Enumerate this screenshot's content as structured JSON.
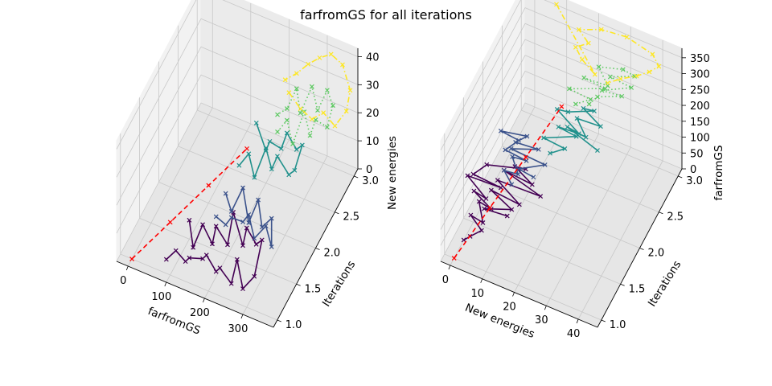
{
  "figure": {
    "title": "farfromGS for all iterations"
  },
  "chart_data": [
    {
      "type": "line",
      "title": "",
      "xlabel": "farfromGS",
      "ylabel": "Iterations",
      "zlabel": "New energies",
      "x_ticks": [
        "0",
        "100",
        "200",
        "300"
      ],
      "y_ticks": [
        "1.0",
        "1.5",
        "2.0",
        "2.5",
        "3.0"
      ],
      "z_ticks": [
        "0",
        "10",
        "20",
        "30",
        "40"
      ],
      "xlim": [
        -30,
        380
      ],
      "ylim": [
        0.9,
        3.1
      ],
      "zlim": [
        0,
        43
      ],
      "grid": true,
      "series_colors": [
        "#440154",
        "#3b528b",
        "#21918c",
        "#5ec962",
        "#fde725",
        "#ff0000"
      ],
      "series": [
        {
          "color": "#440154",
          "style": "solid",
          "x": [
            90,
            110,
            130,
            150,
            170,
            190,
            210,
            230,
            250,
            270,
            290,
            310,
            320,
            300,
            280,
            260,
            240,
            220,
            200,
            180,
            160,
            140,
            120
          ],
          "y": [
            1.0,
            1.05,
            1.1,
            1.0,
            1.15,
            1.05,
            1.1,
            1.0,
            1.1,
            1.05,
            1.0,
            1.1,
            1.2,
            1.25,
            1.2,
            1.3,
            1.25,
            1.3,
            1.2,
            1.3,
            1.25,
            1.2,
            1.3
          ],
          "z": [
            5,
            8,
            4,
            9,
            6,
            11,
            5,
            10,
            3,
            14,
            6,
            9,
            20,
            16,
            22,
            12,
            24,
            10,
            18,
            8,
            15,
            7,
            13
          ]
        },
        {
          "color": "#3b528b",
          "style": "solid",
          "x": [
            170,
            190,
            210,
            230,
            250,
            270,
            290,
            310,
            300,
            280,
            260,
            240,
            220,
            200,
            180
          ],
          "y": [
            1.5,
            1.55,
            1.5,
            1.6,
            1.55,
            1.5,
            1.6,
            1.55,
            1.65,
            1.6,
            1.7,
            1.65,
            1.7,
            1.6,
            1.65
          ],
          "z": [
            12,
            9,
            14,
            11,
            16,
            10,
            13,
            8,
            15,
            12,
            18,
            10,
            20,
            13,
            17
          ]
        },
        {
          "color": "#21918c",
          "style": "solid",
          "x": [
            180,
            200,
            220,
            240,
            260,
            280,
            300,
            320,
            330,
            310,
            290,
            270,
            250,
            230,
            210
          ],
          "y": [
            2.0,
            2.05,
            2.0,
            2.1,
            2.05,
            2.0,
            2.1,
            2.05,
            2.15,
            2.2,
            2.15,
            2.2,
            2.1,
            2.2,
            2.15
          ],
          "z": [
            18,
            22,
            16,
            25,
            20,
            27,
            19,
            23,
            30,
            26,
            32,
            24,
            28,
            21,
            31
          ]
        },
        {
          "color": "#5ec962",
          "style": "dotted",
          "x": [
            230,
            250,
            270,
            290,
            310,
            330,
            350,
            360,
            340,
            320,
            300,
            280,
            260,
            240,
            220
          ],
          "y": [
            2.5,
            2.55,
            2.5,
            2.6,
            2.55,
            2.5,
            2.6,
            2.65,
            2.7,
            2.65,
            2.7,
            2.6,
            2.7,
            2.65,
            2.6
          ],
          "z": [
            20,
            24,
            18,
            28,
            22,
            30,
            26,
            33,
            36,
            29,
            35,
            27,
            32,
            25,
            23
          ]
        },
        {
          "color": "#fde725",
          "style": "dashdot",
          "x": [
            210,
            240,
            270,
            300,
            330,
            360,
            370,
            350,
            320,
            290,
            260,
            230,
            200
          ],
          "y": [
            3.0,
            3.0,
            3.0,
            3.0,
            3.0,
            3.0,
            3.0,
            3.0,
            3.0,
            3.0,
            3.0,
            3.0,
            3.0
          ],
          "z": [
            20,
            16,
            14,
            18,
            15,
            22,
            30,
            38,
            40,
            37,
            33,
            28,
            24
          ]
        },
        {
          "color": "#ff0000",
          "style": "dashed",
          "x": [
            0,
            40,
            80,
            120
          ],
          "y": [
            1.0,
            1.6,
            2.2,
            2.8
          ],
          "z": [
            0,
            0,
            0,
            0
          ]
        }
      ]
    },
    {
      "type": "line",
      "title": "",
      "xlabel": "New energies",
      "ylabel": "Iterations",
      "zlabel": "farfromGS",
      "x_ticks": [
        "0",
        "10",
        "20",
        "30",
        "40"
      ],
      "y_ticks": [
        "1.0",
        "1.5",
        "2.0",
        "2.5",
        "3.0"
      ],
      "z_ticks": [
        "0",
        "50",
        "100",
        "150",
        "200",
        "250",
        "300",
        "350"
      ],
      "xlim": [
        -3,
        46
      ],
      "ylim": [
        0.9,
        3.1
      ],
      "zlim": [
        0,
        380
      ],
      "grid": true,
      "series_colors": [
        "#440154",
        "#3b528b",
        "#21918c",
        "#5ec962",
        "#fde725",
        "#ff0000"
      ],
      "series": [
        {
          "color": "#440154",
          "style": "solid",
          "x": [
            3,
            5,
            8,
            4,
            9,
            6,
            11,
            5,
            10,
            3,
            14,
            6,
            9,
            20,
            16,
            22,
            12,
            24,
            10,
            18,
            8,
            15,
            7,
            13
          ],
          "y": [
            1.0,
            1.0,
            1.05,
            1.1,
            1.0,
            1.15,
            1.05,
            1.1,
            1.0,
            1.1,
            1.05,
            1.0,
            1.1,
            1.2,
            1.25,
            1.2,
            1.3,
            1.25,
            1.3,
            1.2,
            1.3,
            1.25,
            1.2,
            1.3
          ],
          "z": [
            70,
            90,
            110,
            130,
            150,
            170,
            190,
            210,
            230,
            250,
            270,
            290,
            310,
            320,
            300,
            280,
            260,
            240,
            220,
            200,
            180,
            160,
            140,
            120
          ]
        },
        {
          "color": "#3b528b",
          "style": "solid",
          "x": [
            12,
            9,
            14,
            11,
            16,
            10,
            13,
            8,
            15,
            12,
            18,
            10,
            20,
            13,
            17
          ],
          "y": [
            1.5,
            1.55,
            1.5,
            1.6,
            1.55,
            1.5,
            1.6,
            1.55,
            1.65,
            1.6,
            1.7,
            1.65,
            1.7,
            1.6,
            1.65
          ],
          "z": [
            170,
            190,
            210,
            230,
            250,
            270,
            290,
            310,
            300,
            280,
            260,
            240,
            220,
            200,
            180
          ]
        },
        {
          "color": "#21918c",
          "style": "solid",
          "x": [
            18,
            22,
            16,
            25,
            20,
            27,
            19,
            23,
            30,
            26,
            32,
            24,
            28,
            21,
            31
          ],
          "y": [
            2.0,
            2.05,
            2.0,
            2.1,
            2.05,
            2.0,
            2.1,
            2.05,
            2.15,
            2.2,
            2.15,
            2.2,
            2.1,
            2.2,
            2.15
          ],
          "z": [
            180,
            200,
            220,
            240,
            260,
            280,
            300,
            320,
            330,
            310,
            290,
            270,
            250,
            230,
            210
          ]
        },
        {
          "color": "#5ec962",
          "style": "dotted",
          "x": [
            20,
            24,
            18,
            28,
            22,
            30,
            26,
            33,
            36,
            29,
            35,
            27,
            32,
            25,
            23
          ],
          "y": [
            2.5,
            2.55,
            2.5,
            2.6,
            2.55,
            2.5,
            2.6,
            2.65,
            2.7,
            2.65,
            2.7,
            2.6,
            2.7,
            2.65,
            2.6
          ],
          "z": [
            230,
            250,
            270,
            290,
            310,
            330,
            350,
            360,
            340,
            320,
            300,
            280,
            260,
            240,
            220
          ]
        },
        {
          "color": "#fde725",
          "style": "dashdot",
          "x": [
            8,
            20,
            16,
            14,
            18,
            15,
            22,
            30,
            38,
            40,
            37,
            33,
            28,
            24
          ],
          "y": [
            3.0,
            3.0,
            3.0,
            3.0,
            3.0,
            3.0,
            3.0,
            3.0,
            3.0,
            3.0,
            3.0,
            3.0,
            3.0,
            3.0
          ],
          "z": [
            380,
            210,
            240,
            270,
            300,
            330,
            360,
            370,
            350,
            320,
            290,
            260,
            230,
            200
          ]
        },
        {
          "color": "#ff0000",
          "style": "dashed",
          "x": [
            0,
            4,
            8,
            12
          ],
          "y": [
            1.0,
            1.6,
            2.2,
            2.8
          ],
          "z": [
            0,
            40,
            80,
            120
          ]
        }
      ]
    }
  ]
}
